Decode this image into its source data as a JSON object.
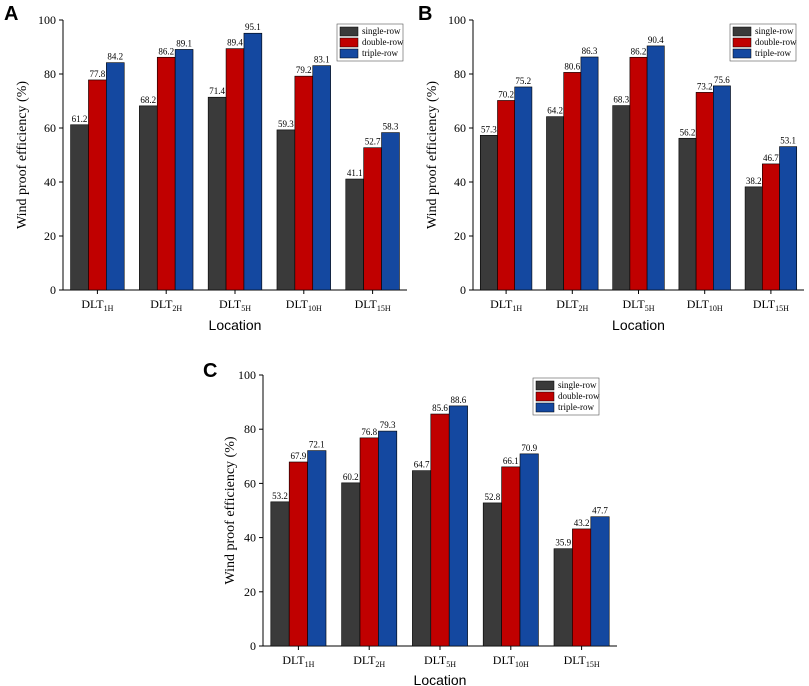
{
  "colors": {
    "single_row": "#3a3a3a",
    "double_row": "#c00000",
    "triple_row": "#1448a0"
  },
  "chart_data": [
    {
      "panel": "A",
      "type": "bar",
      "categories": [
        {
          "main": "DLT",
          "sub": "1H"
        },
        {
          "main": "DLT",
          "sub": "2H"
        },
        {
          "main": "DLT",
          "sub": "5H"
        },
        {
          "main": "DLT",
          "sub": "10H"
        },
        {
          "main": "DLT",
          "sub": "15H"
        }
      ],
      "series": [
        {
          "name": "single-row",
          "values": [
            61.2,
            68.2,
            71.4,
            59.3,
            41.1
          ],
          "labels": [
            "61.2",
            "68.2",
            "71.4",
            "59.3",
            "41.1"
          ]
        },
        {
          "name": "double-row",
          "values": [
            77.8,
            86.2,
            89.4,
            79.2,
            52.7
          ],
          "labels": [
            "77.8",
            "86.2",
            "89.4",
            "79.2",
            "52.7"
          ]
        },
        {
          "name": "triple-row",
          "values": [
            84.2,
            89.1,
            95.1,
            83.1,
            58.3
          ],
          "labels": [
            "84.2",
            "89.1",
            "95.1",
            "83.1",
            "58.3"
          ]
        }
      ],
      "xlabel": "Location",
      "ylabel": "Wind proof efficiency (%)",
      "ylim": [
        0,
        100
      ],
      "yticks": [
        0,
        20,
        40,
        60,
        80,
        100
      ],
      "legend_position": "top-right"
    },
    {
      "panel": "B",
      "type": "bar",
      "categories": [
        {
          "main": "DLT",
          "sub": "1H"
        },
        {
          "main": "DLT",
          "sub": "2H"
        },
        {
          "main": "DLT",
          "sub": "5H"
        },
        {
          "main": "DLT",
          "sub": "10H"
        },
        {
          "main": "DLT",
          "sub": "15H"
        }
      ],
      "series": [
        {
          "name": "single-row",
          "values": [
            57.3,
            64.2,
            68.3,
            56.2,
            38.2
          ],
          "labels": [
            "57.3",
            "64.2",
            "68.3",
            "56.2",
            "38.2"
          ]
        },
        {
          "name": "double-row",
          "values": [
            70.2,
            80.6,
            86.2,
            73.2,
            46.7
          ],
          "labels": [
            "70.2",
            "80.6",
            "86.2",
            "73.2",
            "46.7"
          ]
        },
        {
          "name": "triple-row",
          "values": [
            75.2,
            86.3,
            90.4,
            75.6,
            53.1
          ],
          "labels": [
            "75.2",
            "86.3",
            "90.4",
            "75.6",
            "53.1"
          ]
        }
      ],
      "xlabel": "Location",
      "ylabel": "Wind proof efficiency (%)",
      "ylim": [
        0,
        100
      ],
      "yticks": [
        0,
        20,
        40,
        60,
        80,
        100
      ],
      "legend_position": "top-right"
    },
    {
      "panel": "C",
      "type": "bar",
      "categories": [
        {
          "main": "DLT",
          "sub": "1H"
        },
        {
          "main": "DLT",
          "sub": "2H"
        },
        {
          "main": "DLT",
          "sub": "5H"
        },
        {
          "main": "DLT",
          "sub": "10H"
        },
        {
          "main": "DLT",
          "sub": "15H"
        }
      ],
      "series": [
        {
          "name": "single-row",
          "values": [
            53.2,
            60.2,
            64.7,
            52.8,
            35.9
          ],
          "labels": [
            "53.2",
            "60.2",
            "64.7",
            "52.8",
            "35.9"
          ]
        },
        {
          "name": "double-row",
          "values": [
            67.9,
            76.8,
            85.6,
            66.1,
            43.2
          ],
          "labels": [
            "67.9",
            "76.8",
            "85.6",
            "66.1",
            "43.2"
          ]
        },
        {
          "name": "triple-row",
          "values": [
            72.1,
            79.3,
            88.6,
            70.9,
            47.7
          ],
          "labels": [
            "72.1",
            "79.3",
            "88.6",
            "70.9",
            "47.7"
          ]
        }
      ],
      "xlabel": "Location",
      "ylabel": "Wind proof efficiency (%)",
      "ylim": [
        0,
        100
      ],
      "yticks": [
        0,
        20,
        40,
        60,
        80,
        100
      ],
      "legend_position": "top-right"
    }
  ]
}
